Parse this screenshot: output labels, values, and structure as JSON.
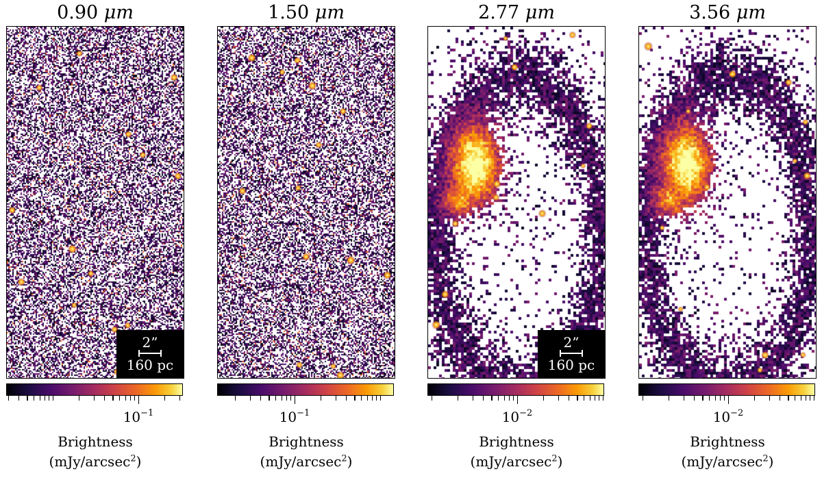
{
  "panels": [
    {
      "title_value": "0.90",
      "title_unit": "μm",
      "scalebar": {
        "arcsec": "2”",
        "physical": "160 pc"
      },
      "tick_label_base": "10",
      "tick_label_exp": "−1",
      "structure": "faint",
      "colorbar_label_line1": "Brightness",
      "colorbar_label_line2": "(mJy/arcsec",
      "colorbar_label_exp": "2",
      "colorbar_label_close": ")"
    },
    {
      "title_value": "1.50",
      "title_unit": "μm",
      "scalebar": null,
      "tick_label_base": "10",
      "tick_label_exp": "−1",
      "structure": "faint",
      "colorbar_label_line1": "Brightness",
      "colorbar_label_line2": "(mJy/arcsec",
      "colorbar_label_exp": "2",
      "colorbar_label_close": ")"
    },
    {
      "title_value": "2.77",
      "title_unit": "μm",
      "scalebar": {
        "arcsec": "2”",
        "physical": "160 pc"
      },
      "tick_label_base": "10",
      "tick_label_exp": "−2",
      "structure": "arc",
      "colorbar_label_line1": "Brightness",
      "colorbar_label_line2": "(mJy/arcsec",
      "colorbar_label_exp": "2",
      "colorbar_label_close": ")"
    },
    {
      "title_value": "3.56",
      "title_unit": "μm",
      "scalebar": null,
      "tick_label_base": "10",
      "tick_label_exp": "−2",
      "structure": "arc",
      "colorbar_label_line1": "Brightness",
      "colorbar_label_line2": "(mJy/arcsec",
      "colorbar_label_exp": "2",
      "colorbar_label_close": ")"
    }
  ],
  "colormap": "inferno",
  "colors": {
    "background": "#ffffff",
    "frame": "#000000"
  }
}
